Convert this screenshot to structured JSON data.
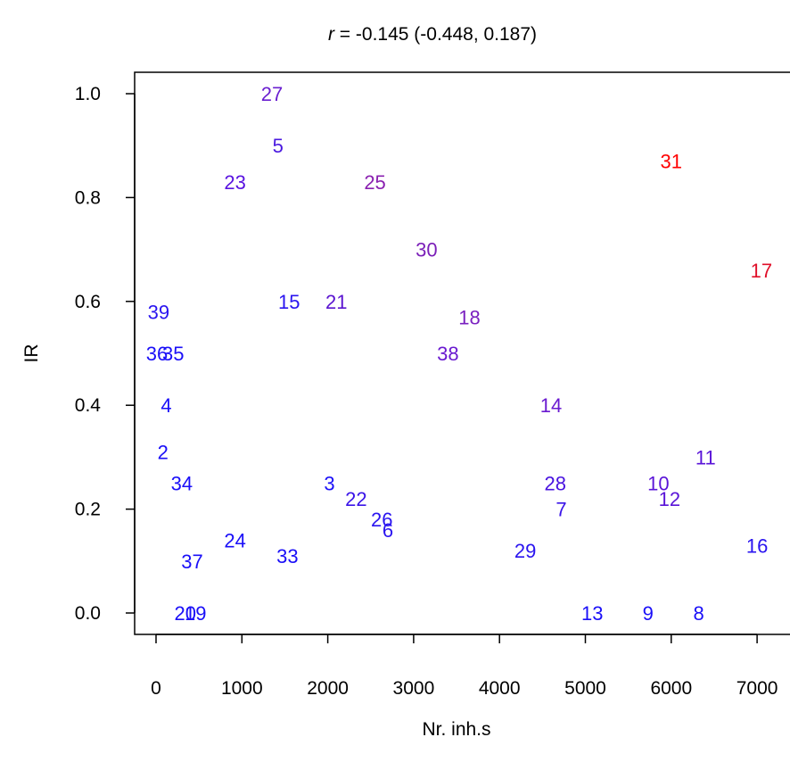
{
  "chart_data": {
    "type": "scatter",
    "title": {
      "r_symbol": "r",
      "text": " = -0.145 (-0.448, 0.187)"
    },
    "xlabel": "Nr. inh.s",
    "ylabel": "IR",
    "xlim": [
      -100,
      7100
    ],
    "ylim": [
      -0.04,
      1.04
    ],
    "x_ticks": [
      0,
      1000,
      2000,
      3000,
      4000,
      5000,
      6000,
      7000
    ],
    "x_tick_labels": [
      "0",
      "1000",
      "2000",
      "3000",
      "4000",
      "5000",
      "6000",
      "7000"
    ],
    "y_ticks": [
      0.0,
      0.2,
      0.4,
      0.6,
      0.8,
      1.0
    ],
    "y_tick_labels": [
      "0.0",
      "0.2",
      "0.4",
      "0.6",
      "0.8",
      "1.0"
    ],
    "grid": false,
    "legend": "none",
    "marker": "text labels (observation numbers)",
    "color_scale": [
      "#0000ff",
      "#ff0000"
    ],
    "points": [
      {
        "label": "27",
        "x": 1350,
        "y": 1.0,
        "color": "#6a1fd0"
      },
      {
        "label": "5",
        "x": 1420,
        "y": 0.9,
        "color": "#4b1ae0"
      },
      {
        "label": "23",
        "x": 920,
        "y": 0.83,
        "color": "#5a14e0"
      },
      {
        "label": "25",
        "x": 2550,
        "y": 0.83,
        "color": "#8a20b0"
      },
      {
        "label": "31",
        "x": 6000,
        "y": 0.87,
        "color": "#ff0000"
      },
      {
        "label": "30",
        "x": 3150,
        "y": 0.7,
        "color": "#7b1fb8"
      },
      {
        "label": "17",
        "x": 7050,
        "y": 0.66,
        "color": "#e0102a"
      },
      {
        "label": "39",
        "x": 30,
        "y": 0.58,
        "color": "#2a14f0"
      },
      {
        "label": "15",
        "x": 1550,
        "y": 0.6,
        "color": "#2a14f0"
      },
      {
        "label": "21",
        "x": 2100,
        "y": 0.6,
        "color": "#5a14d0"
      },
      {
        "label": "18",
        "x": 3650,
        "y": 0.57,
        "color": "#7a20c0"
      },
      {
        "label": "36",
        "x": 10,
        "y": 0.5,
        "color": "#1a0ff8"
      },
      {
        "label": "35",
        "x": 200,
        "y": 0.5,
        "color": "#1a0ff8"
      },
      {
        "label": "38",
        "x": 3400,
        "y": 0.5,
        "color": "#6a1ad0"
      },
      {
        "label": "4",
        "x": 120,
        "y": 0.4,
        "color": "#1a0ff8"
      },
      {
        "label": "14",
        "x": 4600,
        "y": 0.4,
        "color": "#6a1ad0"
      },
      {
        "label": "2",
        "x": 80,
        "y": 0.31,
        "color": "#1a0ff8"
      },
      {
        "label": "11",
        "x": 6400,
        "y": 0.3,
        "color": "#5a14d8"
      },
      {
        "label": "34",
        "x": 300,
        "y": 0.25,
        "color": "#1a0ff8"
      },
      {
        "label": "3",
        "x": 2020,
        "y": 0.25,
        "color": "#1a0ff8"
      },
      {
        "label": "28",
        "x": 4650,
        "y": 0.25,
        "color": "#4a14e0"
      },
      {
        "label": "10",
        "x": 5850,
        "y": 0.25,
        "color": "#5a14d8"
      },
      {
        "label": "22",
        "x": 2330,
        "y": 0.22,
        "color": "#3a14e8"
      },
      {
        "label": "12",
        "x": 5980,
        "y": 0.22,
        "color": "#5a14d8"
      },
      {
        "label": "7",
        "x": 4720,
        "y": 0.2,
        "color": "#3a14e8"
      },
      {
        "label": "26",
        "x": 2630,
        "y": 0.18,
        "color": "#2a14f0"
      },
      {
        "label": "6",
        "x": 2700,
        "y": 0.16,
        "color": "#2a14f0"
      },
      {
        "label": "24",
        "x": 920,
        "y": 0.14,
        "color": "#1a0ff8"
      },
      {
        "label": "16",
        "x": 7000,
        "y": 0.13,
        "color": "#2a14f0"
      },
      {
        "label": "29",
        "x": 4300,
        "y": 0.12,
        "color": "#2a14f0"
      },
      {
        "label": "33",
        "x": 1530,
        "y": 0.11,
        "color": "#1a0ff8"
      },
      {
        "label": "37",
        "x": 420,
        "y": 0.1,
        "color": "#1a0ff8"
      },
      {
        "label": "20",
        "x": 340,
        "y": 0.0,
        "color": "#1a0ff8"
      },
      {
        "label": "19",
        "x": 460,
        "y": 0.0,
        "color": "#1a0ff8"
      },
      {
        "label": "13",
        "x": 5080,
        "y": 0.0,
        "color": "#1a0ff8"
      },
      {
        "label": "9",
        "x": 5730,
        "y": 0.0,
        "color": "#1a0ff8"
      },
      {
        "label": "8",
        "x": 6320,
        "y": 0.0,
        "color": "#1a0ff8"
      }
    ]
  }
}
